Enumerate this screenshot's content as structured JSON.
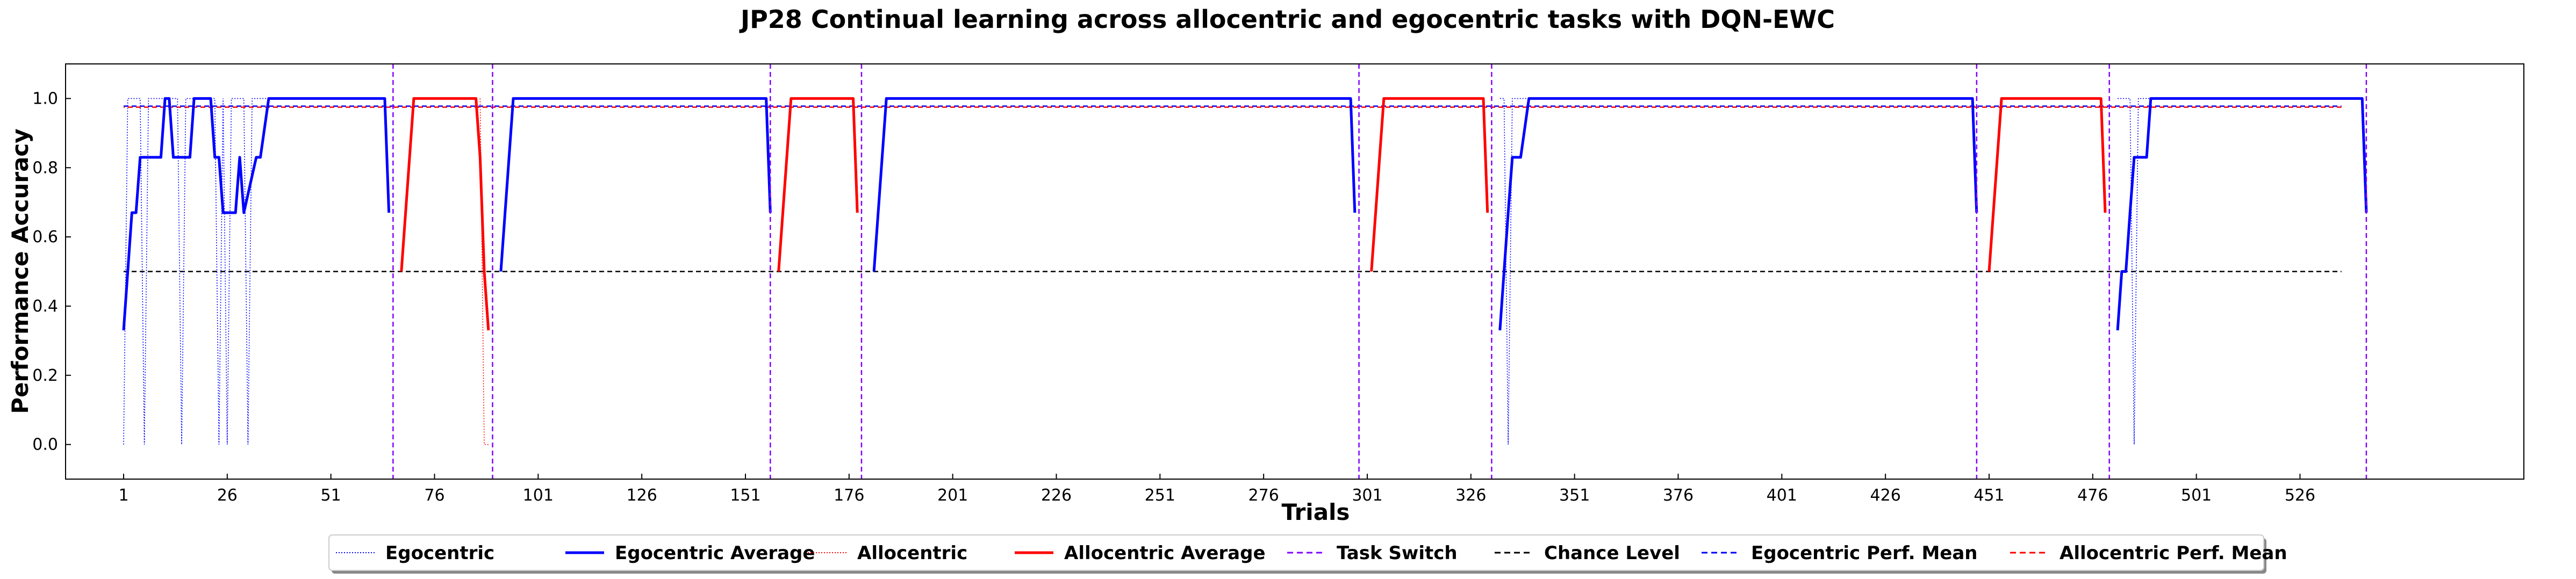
{
  "chart_data": {
    "type": "line",
    "title": "JP28 Continual learning across allocentric and egocentric tasks with DQN-EWC",
    "xlabel": "Trials",
    "ylabel": "Performance Accuracy",
    "xlim": [
      -13,
      580
    ],
    "ylim": [
      -0.1,
      1.1
    ],
    "x_ticks": [
      1,
      26,
      51,
      76,
      101,
      126,
      151,
      176,
      201,
      226,
      251,
      276,
      301,
      326,
      351,
      376,
      401,
      426,
      451,
      476,
      501,
      526
    ],
    "y_ticks": [
      0.0,
      0.2,
      0.4,
      0.6,
      0.8,
      1.0
    ],
    "y_tick_labels": [
      "0.0",
      "0.2",
      "0.4",
      "0.6",
      "0.8",
      "1.0"
    ],
    "task_switches": [
      66,
      90,
      157,
      179,
      299,
      331,
      448,
      480,
      542
    ],
    "chance_level": 0.5,
    "chance_range": [
      1,
      536
    ],
    "egocentric_mean": 0.978,
    "egocentric_mean_range": [
      1,
      536
    ],
    "allocentric_mean": 0.975,
    "allocentric_mean_range": [
      1,
      536
    ],
    "egocentric_avg_segments": [
      {
        "x": [
          1,
          2,
          3,
          4,
          5,
          6,
          10,
          11,
          12,
          13,
          16,
          17,
          18,
          20,
          22,
          23,
          24,
          25,
          28,
          29,
          30,
          33,
          34,
          36,
          64,
          65
        ],
        "y": [
          0.33,
          0.5,
          0.67,
          0.67,
          0.83,
          0.83,
          0.83,
          1.0,
          1.0,
          0.83,
          0.83,
          0.83,
          1.0,
          1.0,
          1.0,
          0.83,
          0.83,
          0.67,
          0.67,
          0.83,
          0.67,
          0.83,
          0.83,
          1.0,
          1.0,
          0.67
        ]
      },
      {
        "x": [
          92,
          95,
          156
        ],
        "y": [
          0.5,
          1.0,
          1.0
        ],
        "tail": [
          [
            156,
            1.0
          ],
          [
            157,
            0.67
          ]
        ]
      },
      {
        "x": [
          182,
          185,
          297
        ],
        "y": [
          0.5,
          1.0,
          1.0
        ],
        "tail": [
          [
            297,
            1.0
          ],
          [
            298,
            0.67
          ]
        ]
      },
      {
        "x": [
          333,
          334,
          335,
          336,
          337,
          338,
          340,
          447
        ],
        "y": [
          0.33,
          0.5,
          0.67,
          0.83,
          0.83,
          0.83,
          1.0,
          1.0
        ],
        "tail": [
          [
            447,
            1.0
          ],
          [
            448,
            0.67
          ]
        ]
      },
      {
        "x": [
          482,
          483,
          484,
          485,
          486,
          488,
          489,
          490,
          541
        ],
        "y": [
          0.33,
          0.5,
          0.5,
          0.67,
          0.83,
          0.83,
          0.83,
          1.0,
          1.0
        ],
        "tail": [
          [
            541,
            1.0
          ],
          [
            542,
            0.67
          ]
        ]
      }
    ],
    "allocentric_avg_segments": [
      {
        "x": [
          68,
          71,
          86,
          87,
          88,
          89
        ],
        "y": [
          0.5,
          1.0,
          1.0,
          0.83,
          0.5,
          0.33
        ]
      },
      {
        "x": [
          159,
          162,
          177,
          178
        ],
        "y": [
          0.5,
          1.0,
          1.0,
          0.67
        ]
      },
      {
        "x": [
          302,
          305,
          329,
          330
        ],
        "y": [
          0.5,
          1.0,
          1.0,
          0.67
        ]
      },
      {
        "x": [
          451,
          454,
          478,
          479
        ],
        "y": [
          0.5,
          1.0,
          1.0,
          0.67
        ]
      }
    ],
    "egocentric_trials": {
      "x": [
        1,
        2,
        3,
        4,
        5,
        6,
        7,
        8,
        9,
        10,
        11,
        12,
        13,
        14,
        15,
        16,
        17,
        18,
        19,
        20,
        21,
        22,
        23,
        24,
        25,
        26,
        27,
        28,
        29,
        30,
        31,
        32,
        33,
        34,
        35,
        36,
        333,
        334,
        335,
        336,
        337,
        338,
        339,
        340,
        482,
        483,
        484,
        485,
        486,
        487,
        488,
        489,
        490
      ],
      "y": [
        0,
        1,
        1,
        1,
        1,
        0,
        1,
        1,
        1,
        1,
        1,
        1,
        1,
        1,
        0,
        1,
        1,
        1,
        1,
        1,
        1,
        1,
        1,
        0,
        1,
        0,
        1,
        1,
        1,
        1,
        0,
        1,
        1,
        1,
        1,
        1,
        1,
        1,
        0,
        1,
        1,
        1,
        1,
        1,
        1,
        1,
        1,
        1,
        0,
        1,
        1,
        1,
        1
      ]
    },
    "allocentric_trials": {
      "x": [
        87,
        88,
        89
      ],
      "y": [
        1,
        0,
        0
      ]
    },
    "legend": {
      "placement": "lower center",
      "entries": [
        {
          "label": "Egocentric",
          "color": "#0000ff",
          "style": "dotted-thin"
        },
        {
          "label": "Egocentric Average",
          "color": "#0000ff",
          "style": "solid"
        },
        {
          "label": "Allocentric",
          "color": "#ff0000",
          "style": "dotted-thin"
        },
        {
          "label": "Allocentric Average",
          "color": "#ff0000",
          "style": "solid"
        },
        {
          "label": "Task Switch",
          "color": "#8000ff",
          "style": "dashed"
        },
        {
          "label": "Chance Level",
          "color": "#000000",
          "style": "dashed"
        },
        {
          "label": "Egocentric Perf. Mean",
          "color": "#0000ff",
          "style": "dashed"
        },
        {
          "label": "Allocentric Perf. Mean",
          "color": "#ff0000",
          "style": "dashed"
        }
      ]
    },
    "colors": {
      "egocentric": "#0000ff",
      "allocentric": "#ff0000",
      "task_switch": "#8000ff",
      "chance": "#000000"
    }
  }
}
